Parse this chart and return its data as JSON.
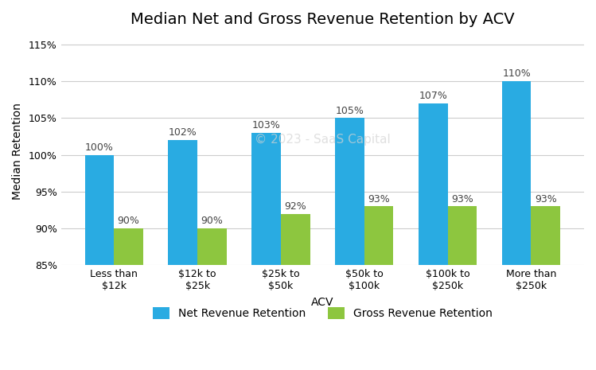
{
  "title": "Median Net and Gross Revenue Retention by ACV",
  "xlabel": "ACV",
  "ylabel": "Median Retention",
  "categories": [
    "Less than\n$12k",
    "$12k to\n$25k",
    "$25k to\n$50k",
    "$50k to\n$100k",
    "$100k to\n$250k",
    "More than\n$250k"
  ],
  "net_revenue": [
    100,
    102,
    103,
    105,
    107,
    110
  ],
  "gross_revenue": [
    90,
    90,
    92,
    93,
    93,
    93
  ],
  "net_color": "#29ABE2",
  "gross_color": "#8DC63F",
  "ylim_min": 85,
  "ylim_max": 116,
  "yticks": [
    85,
    90,
    95,
    100,
    105,
    110,
    115
  ],
  "bar_width": 0.35,
  "legend_labels": [
    "Net Revenue Retention",
    "Gross Revenue Retention"
  ],
  "watermark": "© 2023 - SaaS Capital",
  "background_color": "#ffffff",
  "grid_color": "#cccccc",
  "title_fontsize": 14,
  "label_fontsize": 10,
  "tick_fontsize": 9,
  "annotation_fontsize": 9
}
